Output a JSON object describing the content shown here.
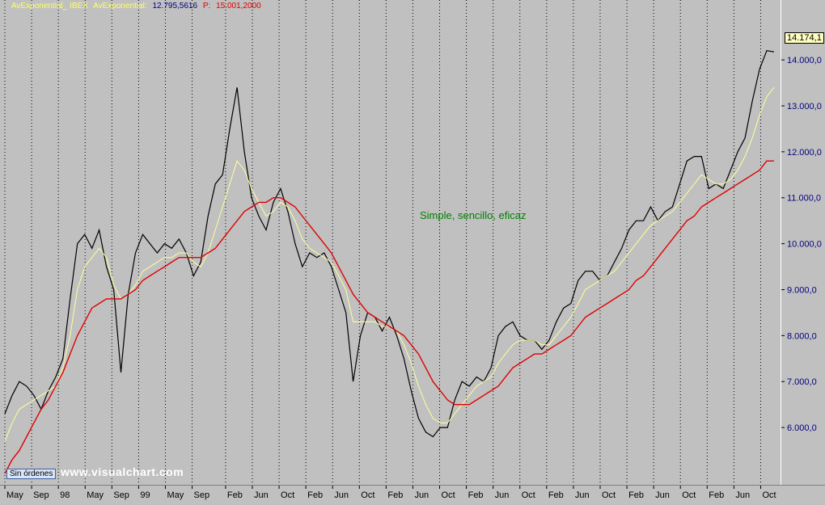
{
  "window": {
    "buttons": [
      "_",
      "▫",
      "×"
    ]
  },
  "legend": {
    "item1": "AvExponential_ IBEX",
    "item2": "AvExponential:",
    "value2": "12.795,5616",
    "item3": "P:",
    "value3": "15.001,2000"
  },
  "badge_label": "Sin órdenes",
  "watermark": "www.visualchart.com",
  "annotation": "Simple, sencillo, eficaz",
  "last_price_label": "14.174,1",
  "colors": {
    "price": "#000000",
    "ema_fast": "#ffff99",
    "ema_slow": "#e00000",
    "legend_name": "#ffff66",
    "legend_value": "#000080",
    "legend_p": "#e00000",
    "axis_text": "#000080",
    "grid": "#000000"
  },
  "chart_data": {
    "type": "line",
    "title": "",
    "xlabel": "",
    "ylabel": "",
    "ylim": [
      5000,
      15000
    ],
    "y_ticks": [
      "6.000,0",
      "7.000,0",
      "8.000,0",
      "9.000,0",
      "10.000,0",
      "11.000,0",
      "12.000,0",
      "13.000,0",
      "14.000,0"
    ],
    "y_tick_values": [
      6000,
      7000,
      8000,
      9000,
      10000,
      11000,
      12000,
      13000,
      14000
    ],
    "x_ticks": [
      "May",
      "Sep",
      "98",
      "May",
      "Sep",
      "99",
      "May",
      "Sep",
      "Feb",
      "Jun",
      "Oct",
      "Feb",
      "Jun",
      "Oct",
      "Feb",
      "Jun",
      "Oct",
      "Feb",
      "Jun",
      "Oct",
      "Feb",
      "Jun",
      "Oct",
      "Feb",
      "Jun",
      "Oct",
      "Feb",
      "Jun",
      "Oct"
    ],
    "x_tick_index": [
      0,
      4,
      8,
      12,
      16,
      20,
      24,
      28,
      33,
      37,
      41,
      45,
      49,
      53,
      57,
      61,
      65,
      69,
      73,
      77,
      81,
      85,
      89,
      93,
      97,
      101,
      105,
      109,
      113
    ],
    "x_count": 116,
    "grid": true,
    "series": [
      {
        "kind": "price",
        "values": [
          6300,
          6700,
          7000,
          6900,
          6700,
          6400,
          6800,
          7100,
          7500,
          8800,
          10000,
          10200,
          9900,
          10300,
          9500,
          9000,
          7200,
          8900,
          9800,
          10200,
          10000,
          9800,
          10000,
          9900,
          10100,
          9800,
          9300,
          9600,
          10600,
          11300,
          11500,
          12500,
          13400,
          12000,
          11000,
          10600,
          10300,
          10900,
          11200,
          10700,
          10000,
          9500,
          9800,
          9700,
          9800,
          9500,
          9000,
          8500,
          7000,
          8000,
          8500,
          8400,
          8100,
          8400,
          8000,
          7500,
          6800,
          6200,
          5900,
          5800,
          6000,
          6000,
          6600,
          7000,
          6900,
          7100,
          7000,
          7300,
          8000,
          8200,
          8300,
          8000,
          7900,
          7900,
          7700,
          7900,
          8300,
          8600,
          8700,
          9200,
          9400,
          9400,
          9200,
          9300,
          9600,
          9900,
          10300,
          10500,
          10500,
          10800,
          10500,
          10700,
          10800,
          11300,
          11800,
          11900,
          11900,
          11200,
          11300,
          11200,
          11600,
          12000,
          12300,
          13100,
          13800,
          14200,
          14174
        ]
      },
      {
        "kind": "ema_fast",
        "values": [
          5700,
          6100,
          6400,
          6500,
          6600,
          6700,
          6800,
          6900,
          7300,
          8000,
          9000,
          9500,
          9700,
          9900,
          9700,
          9100,
          8800,
          8900,
          9100,
          9400,
          9500,
          9600,
          9700,
          9700,
          9800,
          9800,
          9600,
          9500,
          9800,
          10300,
          10800,
          11300,
          11800,
          11600,
          11200,
          10900,
          10600,
          10700,
          10900,
          10800,
          10500,
          10100,
          9900,
          9800,
          9700,
          9600,
          9300,
          9000,
          8300,
          8300,
          8300,
          8300,
          8200,
          8200,
          8100,
          7800,
          7400,
          6900,
          6500,
          6200,
          6100,
          6100,
          6300,
          6500,
          6700,
          6900,
          7000,
          7100,
          7400,
          7600,
          7800,
          7900,
          7900,
          7900,
          7800,
          7800,
          8000,
          8200,
          8400,
          8700,
          9000,
          9100,
          9200,
          9300,
          9400,
          9600,
          9800,
          10000,
          10200,
          10400,
          10500,
          10600,
          10700,
          10900,
          11100,
          11300,
          11500,
          11400,
          11300,
          11300,
          11400,
          11600,
          11900,
          12300,
          12800,
          13200,
          13400
        ]
      },
      {
        "kind": "ema_slow",
        "values": [
          5000,
          5300,
          5500,
          5800,
          6100,
          6400,
          6600,
          6900,
          7200,
          7600,
          8000,
          8300,
          8600,
          8700,
          8800,
          8800,
          8800,
          8900,
          9000,
          9200,
          9300,
          9400,
          9500,
          9600,
          9700,
          9700,
          9700,
          9700,
          9800,
          9900,
          10100,
          10300,
          10500,
          10700,
          10800,
          10900,
          10900,
          11000,
          11000,
          10900,
          10800,
          10600,
          10400,
          10200,
          10000,
          9800,
          9500,
          9200,
          8900,
          8700,
          8500,
          8400,
          8300,
          8200,
          8100,
          8000,
          7800,
          7600,
          7300,
          7000,
          6800,
          6600,
          6500,
          6500,
          6500,
          6600,
          6700,
          6800,
          6900,
          7100,
          7300,
          7400,
          7500,
          7600,
          7600,
          7700,
          7800,
          7900,
          8000,
          8200,
          8400,
          8500,
          8600,
          8700,
          8800,
          8900,
          9000,
          9200,
          9300,
          9500,
          9700,
          9900,
          10100,
          10300,
          10500,
          10600,
          10800,
          10900,
          11000,
          11100,
          11200,
          11300,
          11400,
          11500,
          11600,
          11800,
          11800
        ]
      }
    ]
  }
}
